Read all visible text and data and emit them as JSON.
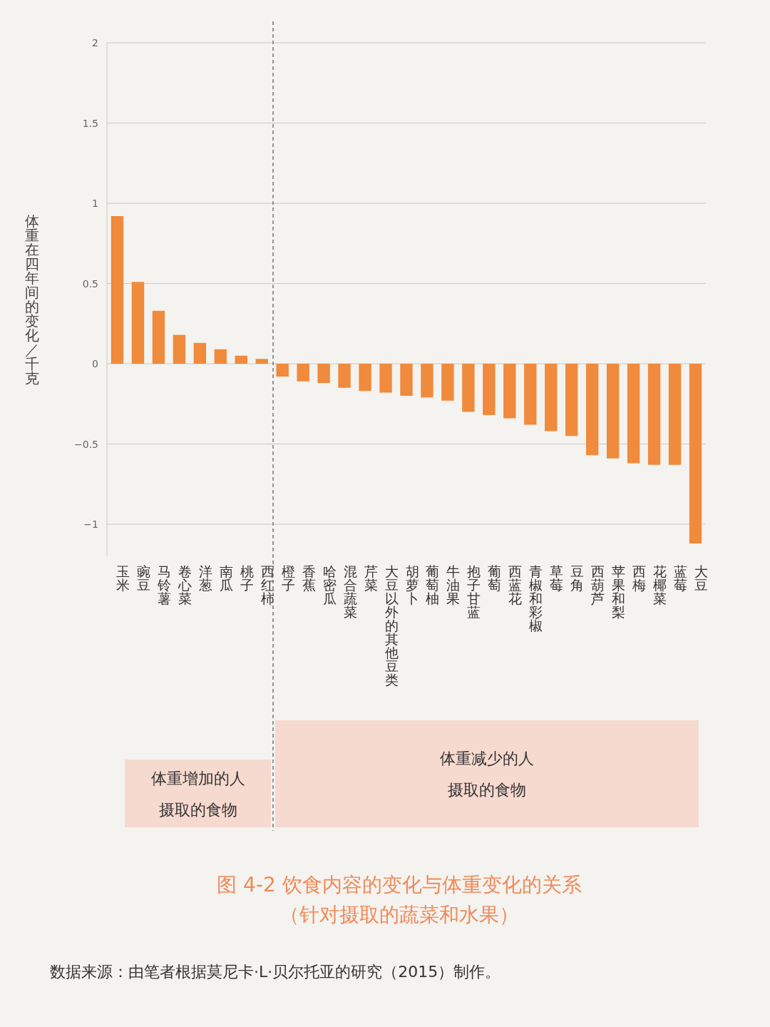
{
  "chart_data": {
    "type": "bar",
    "title": "图 4-2  饮食内容的变化与体重变化的关系",
    "subtitle": "（针对摄取的蔬菜和水果）",
    "ylabel": "体重在四年间的变化／千克",
    "categories": [
      "玉米",
      "豌豆",
      "马铃薯",
      "卷心菜",
      "洋葱",
      "南瓜",
      "桃子",
      "西红柿",
      "橙子",
      "香蕉",
      "哈密瓜",
      "混合蔬菜",
      "芹菜",
      "大豆以外的其他豆类",
      "胡萝卜",
      "葡萄柚",
      "牛油果",
      "抱子甘蓝",
      "葡萄",
      "西蓝花",
      "青椒和彩椒",
      "草莓",
      "豆角",
      "西葫芦",
      "苹果和梨",
      "西梅",
      "花椰菜",
      "蓝莓",
      "大豆"
    ],
    "values": [
      0.92,
      0.51,
      0.33,
      0.18,
      0.13,
      0.09,
      0.05,
      0.03,
      -0.08,
      -0.11,
      -0.12,
      -0.15,
      -0.17,
      -0.18,
      -0.2,
      -0.21,
      -0.23,
      -0.3,
      -0.32,
      -0.34,
      -0.38,
      -0.42,
      -0.45,
      -0.57,
      -0.59,
      -0.62,
      -0.63,
      -0.63,
      -1.12
    ],
    "color": "#f08a3c",
    "ylim": [
      -1.2,
      2
    ],
    "yticks": [
      -1,
      -0.5,
      0,
      0.5,
      1,
      1.5,
      2
    ],
    "grid": "y",
    "annotations": [
      "体重增加的人摄取的食物",
      "体重减少的人摄取的食物",
      "数据来源：由笔者根据莫尼卡·L·贝尔托亚的研究（2015）制作。"
    ]
  }
}
